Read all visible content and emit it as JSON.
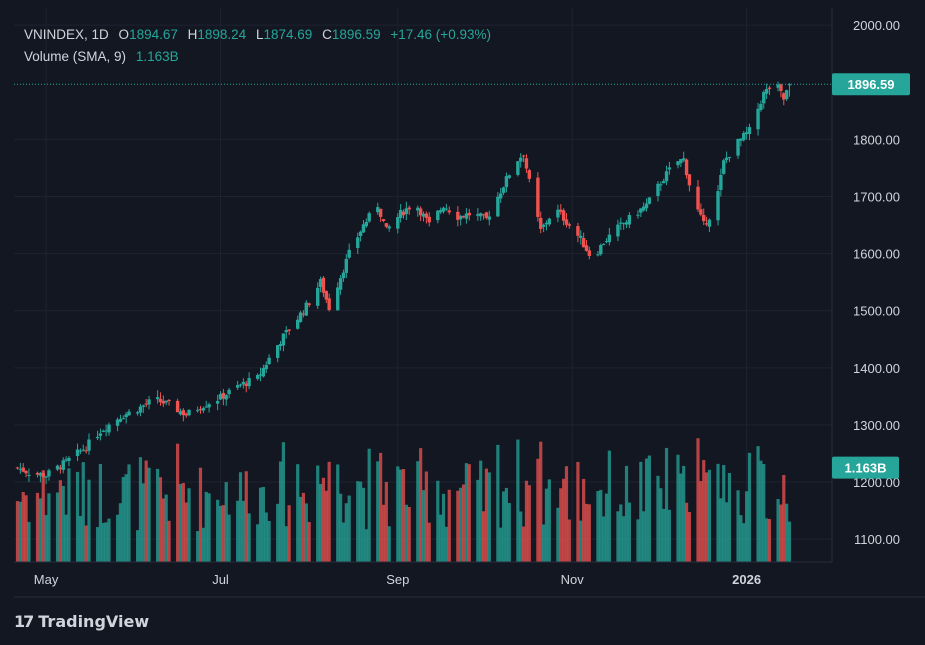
{
  "legend": {
    "symbol": "VNINDEX, 1D",
    "open_label": "O",
    "open": "1894.67",
    "high_label": "H",
    "high": "1898.24",
    "low_label": "L",
    "low": "1874.69",
    "close_label": "C",
    "close": "1896.59",
    "change": "+17.46 (+0.93%)",
    "volume_label": "Volume (SMA, 9)",
    "volume_value": "1.163B"
  },
  "price_tag": "1896.59",
  "volume_tag": "1.163B",
  "brand": "TradingView",
  "colors": {
    "up": "#26a69a",
    "down": "#ef5350",
    "background": "#131722",
    "grid": "#1f2330",
    "text": "#d1d4dc"
  },
  "chart_data": {
    "type": "candlestick",
    "ylim": [
      1060,
      2030
    ],
    "y_ticks": [
      "2000.00",
      "1800.00",
      "1700.00",
      "1600.00",
      "1500.00",
      "1400.00",
      "1300.00",
      "1200.00",
      "1100.00"
    ],
    "x_ticks": [
      "May",
      "Jul",
      "Sep",
      "Nov",
      "2026"
    ],
    "close_path": [
      [
        "Apr 21",
        1225
      ],
      [
        "Apr 26",
        1215
      ],
      [
        "May 1",
        1212
      ],
      [
        "May 8",
        1235
      ],
      [
        "May 15",
        1262
      ],
      [
        "May 20",
        1290
      ],
      [
        "May 27",
        1315
      ],
      [
        "Jun 2",
        1328
      ],
      [
        "Jun 8",
        1345
      ],
      [
        "Jun 13",
        1335
      ],
      [
        "Jun 19",
        1318
      ],
      [
        "Jun 25",
        1335
      ],
      [
        "Jul 1",
        1348
      ],
      [
        "Jul 8",
        1370
      ],
      [
        "Jul 14",
        1382
      ],
      [
        "Jul 19",
        1425
      ],
      [
        "Jul 23",
        1455
      ],
      [
        "Jul 27",
        1480
      ],
      [
        "Aug 1",
        1515
      ],
      [
        "Aug 5",
        1550
      ],
      [
        "Aug 8",
        1505
      ],
      [
        "Aug 12",
        1560
      ],
      [
        "Aug 15",
        1600
      ],
      [
        "Aug 20",
        1650
      ],
      [
        "Aug 25",
        1685
      ],
      [
        "Aug 28",
        1640
      ],
      [
        "Sep 2",
        1670
      ],
      [
        "Sep 7",
        1690
      ],
      [
        "Sep 12",
        1650
      ],
      [
        "Sep 17",
        1685
      ],
      [
        "Sep 22",
        1665
      ],
      [
        "Sep 27",
        1670
      ],
      [
        "Oct 2",
        1660
      ],
      [
        "Oct 7",
        1710
      ],
      [
        "Oct 12",
        1760
      ],
      [
        "Oct 15",
        1775
      ],
      [
        "Oct 18",
        1700
      ],
      [
        "Oct 21",
        1640
      ],
      [
        "Oct 26",
        1680
      ],
      [
        "Oct 31",
        1650
      ],
      [
        "Nov 4",
        1625
      ],
      [
        "Nov 8",
        1590
      ],
      [
        "Nov 12",
        1620
      ],
      [
        "Nov 17",
        1645
      ],
      [
        "Nov 22",
        1665
      ],
      [
        "Nov 27",
        1685
      ],
      [
        "Dec 2",
        1725
      ],
      [
        "Dec 7",
        1760
      ],
      [
        "Dec 10",
        1765
      ],
      [
        "Dec 13",
        1700
      ],
      [
        "Dec 17",
        1650
      ],
      [
        "Dec 21",
        1680
      ],
      [
        "Dec 24",
        1760
      ],
      [
        "Dec 28",
        1790
      ],
      [
        "Jan 2",
        1815
      ],
      [
        "Jan 7",
        1880
      ],
      [
        "Jan 11",
        1900
      ],
      [
        "Jan 14",
        1870
      ],
      [
        "Jan 16",
        1896.59
      ]
    ],
    "last": {
      "open": 1894.67,
      "high": 1898.24,
      "low": 1874.69,
      "close": 1896.59
    },
    "volume_range_billion": [
      0.35,
      1.75
    ],
    "volume_sma": 1.163
  }
}
